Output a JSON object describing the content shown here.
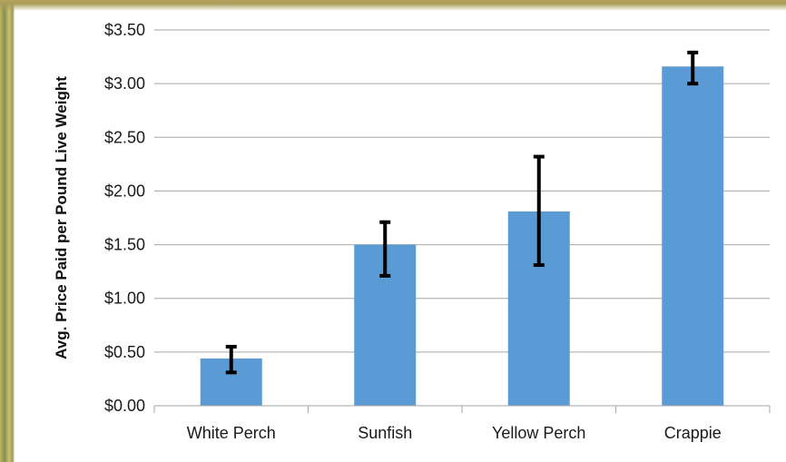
{
  "chart_data": {
    "type": "bar",
    "title": "",
    "xlabel": "",
    "ylabel": "Avg. Price Paid per Pound Live Weight",
    "categories": [
      "White Perch",
      "Sunfish",
      "Yellow Perch",
      "Crappie"
    ],
    "values": [
      0.44,
      1.5,
      1.81,
      3.16
    ],
    "error_low": [
      0.31,
      1.21,
      1.31,
      3.0
    ],
    "error_high": [
      0.55,
      1.71,
      2.32,
      3.29
    ],
    "ylim": [
      0,
      3.5
    ],
    "yticks": [
      0,
      0.5,
      1.0,
      1.5,
      2.0,
      2.5,
      3.0,
      3.5
    ],
    "ytick_labels": [
      "$0.00",
      "$0.50",
      "$1.00",
      "$1.50",
      "$2.00",
      "$2.50",
      "$3.00",
      "$3.50"
    ],
    "grid": true,
    "legend": "none",
    "bar_color": "#5b9bd5",
    "error_color": "#000000",
    "grid_color": "#a6a6a6"
  }
}
